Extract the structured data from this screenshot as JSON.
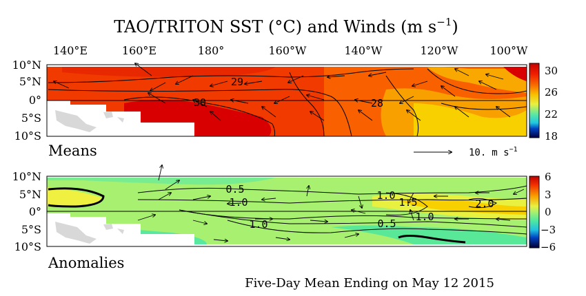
{
  "title": {
    "main": "TAO/TRITON SST (°C) and Winds (m s",
    "exp": "−1",
    "close": ")"
  },
  "top_axis": {
    "longitudes": [
      "140°E",
      "160°E",
      "180°",
      "160°W",
      "140°W",
      "120°W",
      "100°W"
    ]
  },
  "lat_labels": [
    "10°N",
    "5°N",
    "0°",
    "5°S",
    "10°S"
  ],
  "means": {
    "label": "Means",
    "colorbar_ticks": [
      "30",
      "26",
      "22",
      "18"
    ],
    "contour_labels": [
      "29",
      "30",
      "28"
    ],
    "reference_vector": {
      "value_label": "10.",
      "unit_label": "m s",
      "unit_exp": "−1"
    }
  },
  "anomalies": {
    "label": "Anomalies",
    "colorbar_ticks": [
      "6",
      "3",
      "0",
      "−3",
      "−6"
    ],
    "contour_labels": [
      "0.5",
      "1.0",
      "1.0",
      "1.0",
      "1.5",
      "1.0",
      "2.0",
      "0.5"
    ]
  },
  "footer": "Five-Day Mean Ending on May 12 2015",
  "colors": {
    "sst_hot": "#d80000",
    "sst_warm": "#f03000",
    "sst_orange": "#f86000",
    "sst_yellow": "#f8c800",
    "anom_green": "#a8f070",
    "anom_cyan": "#58e898",
    "anom_yellow": "#e8f040",
    "land": "#d8d8d8"
  }
}
